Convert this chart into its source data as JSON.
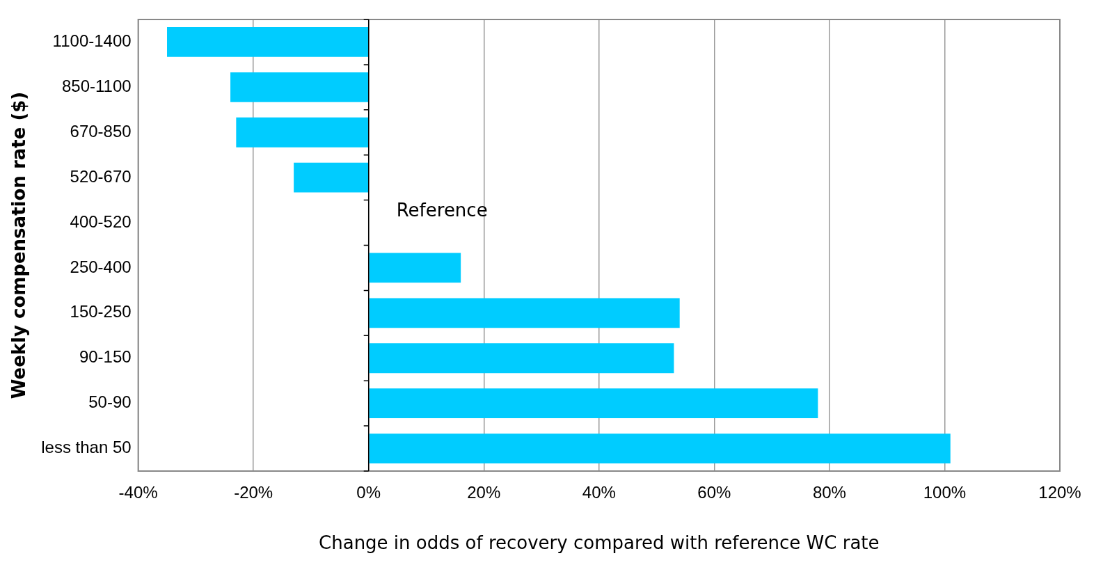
{
  "chart_data": {
    "type": "bar",
    "orientation": "horizontal",
    "xlabel": "Change in odds of recovery compared with reference WC rate",
    "ylabel": "Weekly compensation rate ($)",
    "categories": [
      "1100-1400",
      "850-1100",
      "670-850",
      "520-670",
      "400-520",
      "250-400",
      "150-250",
      "90-150",
      "50-90",
      "less than 50"
    ],
    "values": [
      -35,
      -24,
      -23,
      -13,
      null,
      16,
      54,
      53,
      78,
      101
    ],
    "color": "#00ccff",
    "xlim": [
      -40,
      120
    ],
    "xticks": [
      {
        "value": -40,
        "label": "-40%"
      },
      {
        "value": -20,
        "label": "-20%"
      },
      {
        "value": 0,
        "label": "0%"
      },
      {
        "value": 20,
        "label": "20%"
      },
      {
        "value": 40,
        "label": "40%"
      },
      {
        "value": 60,
        "label": "60%"
      },
      {
        "value": 80,
        "label": "80%"
      },
      {
        "value": 100,
        "label": "100%"
      },
      {
        "value": 120,
        "label": "120%"
      }
    ],
    "grid": "x",
    "legend": false,
    "annotations": [
      "Reference"
    ]
  }
}
